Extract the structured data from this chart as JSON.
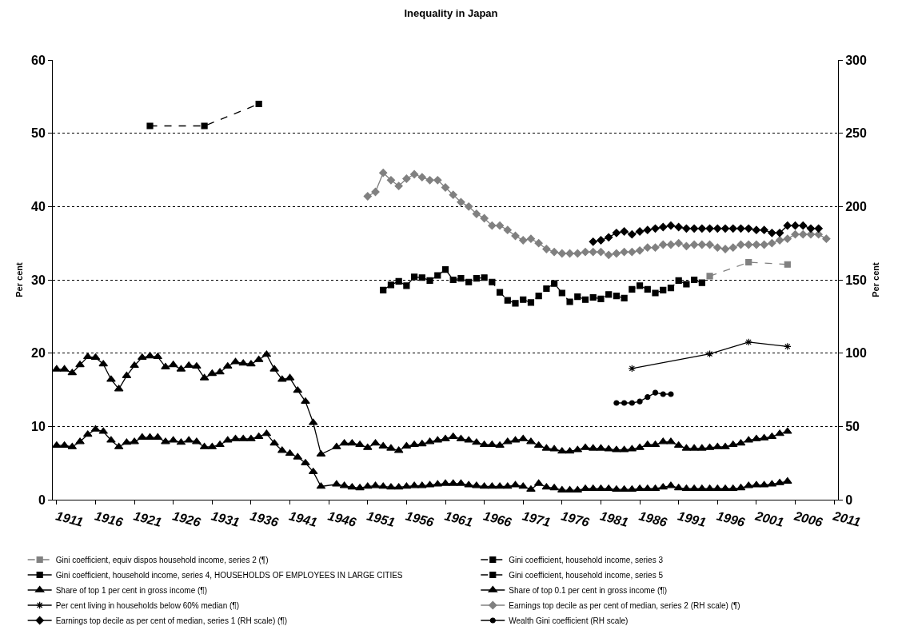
{
  "chart_data": {
    "type": "line",
    "title": "Inequality in Japan",
    "ylabel": "Per cent",
    "y2label": "Per cent",
    "xlim": [
      1910.5,
      2011.5
    ],
    "xticks": [
      1911,
      1916,
      1921,
      1926,
      1931,
      1936,
      1941,
      1946,
      1951,
      1956,
      1961,
      1966,
      1971,
      1976,
      1981,
      1986,
      1991,
      1996,
      2001,
      2006,
      2011
    ],
    "ylim": [
      0,
      60
    ],
    "yticks": [
      0,
      10,
      20,
      30,
      40,
      50,
      60
    ],
    "y2lim": [
      0,
      300
    ],
    "y2ticks": [
      0,
      50,
      100,
      150,
      200,
      250,
      300
    ],
    "grid": "y",
    "legend": "bottom",
    "series": [
      {
        "name": "Gini coefficient, equiv dispos household income, series 2 (¶)",
        "color": "#808080",
        "marker": "square",
        "line_style": "dashed",
        "x": [
          1995,
          2000,
          2005
        ],
        "values": [
          30.5,
          32.4,
          32.1
        ]
      },
      {
        "name": "Gini coefficient, household income, series 3",
        "color": "#000000",
        "marker": "square",
        "line_style": "dashed",
        "x": [
          1965,
          1966,
          1967,
          1968,
          1969,
          1970,
          1971,
          1972,
          1973,
          1974,
          1975,
          1976,
          1977,
          1978,
          1979,
          1980,
          1981,
          1982,
          1983,
          1984,
          1985,
          1986,
          1987,
          1988,
          1989,
          1990,
          1991,
          1992,
          1993,
          1994
        ],
        "values": [
          30.2,
          30.3,
          29.7,
          28.3,
          27.2,
          26.8,
          27.3,
          26.9,
          27.8,
          28.8,
          29.5,
          28.2,
          27.0,
          27.7,
          27.3,
          27.6,
          27.4,
          28.0,
          27.8,
          27.5,
          28.7,
          29.2,
          28.7,
          28.2,
          28.6,
          28.9,
          29.9,
          29.4,
          30.0,
          29.6
        ]
      },
      {
        "name": "Gini coefficient, household income, series 4, HOUSEHOLDS OF EMPLOYEES IN LARGE CITIES",
        "color": "#000000",
        "marker": "square",
        "line_style": "solid",
        "x": [
          1953,
          1954,
          1955,
          1956,
          1957,
          1958,
          1959,
          1960,
          1961,
          1962,
          1963,
          1964
        ],
        "values": [
          28.6,
          29.3,
          29.8,
          29.2,
          30.4,
          30.3,
          29.9,
          30.6,
          31.4,
          30.0,
          30.2,
          29.7
        ]
      },
      {
        "name": "Gini coefficient, household income, series 5",
        "color": "#000000",
        "marker": "square",
        "line_style": "dashed",
        "x": [
          1923,
          1930,
          1937
        ],
        "values": [
          51.0,
          51.0,
          54.0
        ]
      },
      {
        "name": "Share of top 1 per cent in gross income (¶)",
        "color": "#000000",
        "marker": "triangle",
        "line_style": "solid",
        "x": [
          1911,
          1912,
          1913,
          1914,
          1915,
          1916,
          1917,
          1918,
          1919,
          1920,
          1921,
          1922,
          1923,
          1924,
          1925,
          1926,
          1927,
          1928,
          1929,
          1930,
          1931,
          1932,
          1933,
          1934,
          1935,
          1936,
          1937,
          1938,
          1939,
          1940,
          1941,
          1942,
          1943,
          1944,
          1945,
          1947,
          1948,
          1949,
          1950,
          1951,
          1952,
          1953,
          1954,
          1955,
          1956,
          1957,
          1958,
          1959,
          1960,
          1961,
          1962,
          1963,
          1964,
          1965,
          1966,
          1967,
          1968,
          1969,
          1970,
          1971,
          1972,
          1973,
          1974,
          1975,
          1976,
          1977,
          1978,
          1979,
          1980,
          1981,
          1982,
          1983,
          1984,
          1985,
          1986,
          1987,
          1988,
          1989,
          1990,
          1991,
          1992,
          1993,
          1994,
          1995,
          1996,
          1997,
          1998,
          1999,
          2000,
          2001,
          2002,
          2003,
          2004,
          2005
        ],
        "values": [
          17.8,
          17.8,
          17.3,
          18.4,
          19.5,
          19.4,
          18.5,
          16.4,
          15.1,
          16.9,
          18.3,
          19.4,
          19.6,
          19.5,
          18.1,
          18.4,
          17.8,
          18.3,
          18.2,
          16.6,
          17.2,
          17.4,
          18.2,
          18.8,
          18.6,
          18.5,
          19.1,
          19.8,
          17.8,
          16.4,
          16.6,
          14.9,
          13.4,
          10.5,
          6.2,
          7.2,
          7.7,
          7.7,
          7.5,
          7.1,
          7.7,
          7.3,
          7.0,
          6.7,
          7.3,
          7.5,
          7.6,
          7.9,
          8.1,
          8.3,
          8.6,
          8.3,
          8.1,
          7.8,
          7.5,
          7.5,
          7.4,
          7.9,
          8.1,
          8.3,
          7.9,
          7.4,
          7.0,
          6.9,
          6.6,
          6.6,
          6.8,
          7.1,
          7.0,
          7.0,
          6.9,
          6.8,
          6.8,
          6.9,
          7.1,
          7.5,
          7.5,
          7.9,
          7.9,
          7.4,
          7.0,
          7.0,
          7.0,
          7.1,
          7.2,
          7.2,
          7.5,
          7.7,
          8.1,
          8.3,
          8.4,
          8.6,
          9.0,
          9.3
        ]
      },
      {
        "name": "Share of top 0.1 per cent in gross income (¶)",
        "color": "#000000",
        "marker": "triangle",
        "line_style": "solid",
        "x": [
          1911,
          1912,
          1913,
          1914,
          1915,
          1916,
          1917,
          1918,
          1919,
          1920,
          1921,
          1922,
          1923,
          1924,
          1925,
          1926,
          1927,
          1928,
          1929,
          1930,
          1931,
          1932,
          1933,
          1934,
          1935,
          1936,
          1937,
          1938,
          1939,
          1940,
          1941,
          1942,
          1943,
          1944,
          1945,
          1947,
          1948,
          1949,
          1950,
          1951,
          1952,
          1953,
          1954,
          1955,
          1956,
          1957,
          1958,
          1959,
          1960,
          1961,
          1962,
          1963,
          1964,
          1965,
          1966,
          1967,
          1968,
          1969,
          1970,
          1971,
          1972,
          1973,
          1974,
          1975,
          1976,
          1977,
          1978,
          1979,
          1980,
          1981,
          1982,
          1983,
          1984,
          1985,
          1986,
          1987,
          1988,
          1989,
          1990,
          1991,
          1992,
          1993,
          1994,
          1995,
          1996,
          1997,
          1998,
          1999,
          2000,
          2001,
          2002,
          2003,
          2004,
          2005
        ],
        "values": [
          7.4,
          7.4,
          7.2,
          7.9,
          8.9,
          9.6,
          9.3,
          8.1,
          7.2,
          7.8,
          7.9,
          8.5,
          8.5,
          8.5,
          7.9,
          8.1,
          7.8,
          8.1,
          7.9,
          7.2,
          7.2,
          7.5,
          8.1,
          8.3,
          8.3,
          8.3,
          8.6,
          9.0,
          7.7,
          6.7,
          6.3,
          5.8,
          5.0,
          3.8,
          1.8,
          2.1,
          1.9,
          1.7,
          1.6,
          1.8,
          1.9,
          1.8,
          1.7,
          1.7,
          1.8,
          1.9,
          1.9,
          2.0,
          2.1,
          2.2,
          2.2,
          2.2,
          2.0,
          1.9,
          1.8,
          1.8,
          1.8,
          1.8,
          2.0,
          1.8,
          1.4,
          2.2,
          1.7,
          1.6,
          1.3,
          1.3,
          1.3,
          1.5,
          1.5,
          1.5,
          1.5,
          1.4,
          1.4,
          1.4,
          1.5,
          1.5,
          1.5,
          1.7,
          1.9,
          1.6,
          1.5,
          1.5,
          1.5,
          1.5,
          1.5,
          1.5,
          1.5,
          1.6,
          1.9,
          2.0,
          2.0,
          2.1,
          2.3,
          2.5
        ]
      },
      {
        "name": "Per cent living in households below 60% median (¶)",
        "color": "#000000",
        "marker": "cross",
        "line_style": "solid",
        "x": [
          1985,
          1995,
          2000,
          2005
        ],
        "values": [
          17.9,
          19.9,
          21.5,
          20.9
        ]
      },
      {
        "name": "Earnings top decile as per cent of median, series 2 (RH scale) (¶)",
        "color": "#808080",
        "marker": "diamond",
        "line_style": "solid",
        "axis": "y2",
        "x": [
          1951,
          1952,
          1953,
          1954,
          1955,
          1956,
          1957,
          1958,
          1959,
          1960,
          1961,
          1962,
          1963,
          1964,
          1965,
          1966,
          1967,
          1968,
          1969,
          1970,
          1971,
          1972,
          1973,
          1974,
          1975,
          1976,
          1977,
          1978,
          1979,
          1980,
          1981,
          1982,
          1983,
          1984,
          1985,
          1986,
          1987,
          1988,
          1989,
          1990,
          1991,
          1992,
          1993,
          1994,
          1995,
          1996,
          1997,
          1998,
          1999,
          2000,
          2001,
          2002,
          2003,
          2004,
          2005,
          2006,
          2007,
          2008,
          2009,
          2010
        ],
        "values": [
          207,
          210,
          223,
          218,
          214,
          219,
          222,
          220,
          218,
          218,
          213,
          208,
          203,
          200,
          195,
          192,
          187,
          187,
          184,
          180,
          177,
          178,
          175,
          171,
          169,
          168,
          168,
          168,
          169,
          169,
          169,
          167,
          168,
          169,
          169,
          170,
          172,
          172,
          174,
          174,
          175,
          173,
          174,
          174,
          174,
          172,
          171,
          172,
          174,
          174,
          174,
          174,
          175,
          177,
          178,
          181,
          181,
          181,
          181,
          178
        ]
      },
      {
        "name": "Earnings top decile as per cent of median, series 1 (RH scale) (¶)",
        "color": "#000000",
        "marker": "diamond",
        "line_style": "solid",
        "axis": "y2",
        "x": [
          1980,
          1981,
          1982,
          1983,
          1984,
          1985,
          1986,
          1987,
          1988,
          1989,
          1990,
          1991,
          1992,
          1993,
          1994,
          1995,
          1996,
          1997,
          1998,
          1999,
          2000,
          2001,
          2002,
          2003,
          2004,
          2005,
          2006,
          2007,
          2008,
          2009
        ],
        "values": [
          176,
          177,
          179,
          182,
          183,
          181,
          183,
          184,
          185,
          186,
          187,
          186,
          185,
          185,
          185,
          185,
          185,
          185,
          185,
          185,
          185,
          184,
          184,
          182,
          182,
          187,
          187,
          187,
          185,
          185
        ]
      },
      {
        "name": "Wealth Gini coefficient (RH scale)",
        "color": "#000000",
        "marker": "circle",
        "line_style": "solid",
        "axis": "y2",
        "x": [
          1983,
          1984,
          1985,
          1986,
          1987,
          1988,
          1989,
          1990
        ],
        "values": [
          66,
          66,
          66,
          67,
          70,
          73,
          72,
          72
        ]
      }
    ]
  }
}
